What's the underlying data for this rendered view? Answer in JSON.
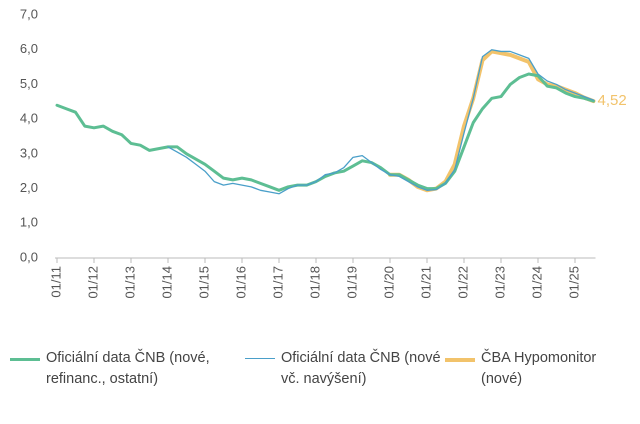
{
  "chart_data": {
    "type": "line",
    "categories": [
      "01/11",
      null,
      null,
      null,
      "01/12",
      null,
      null,
      null,
      "01/13",
      null,
      null,
      null,
      "01/14",
      null,
      null,
      null,
      "01/15",
      null,
      null,
      null,
      "01/16",
      null,
      null,
      null,
      "01/17",
      null,
      null,
      null,
      "01/18",
      null,
      null,
      null,
      "01/19",
      null,
      null,
      null,
      "01/20",
      null,
      null,
      null,
      "01/21",
      null,
      null,
      null,
      "01/22",
      null,
      null,
      null,
      "01/23",
      null,
      null,
      null,
      "01/24",
      null,
      null,
      null,
      "01/25",
      null,
      null
    ],
    "series": [
      {
        "name": "Oficiální data ČNB (nové, refinanc., ostatní)",
        "color": "#5dbe93",
        "values": [
          4.4,
          4.3,
          4.2,
          3.8,
          3.75,
          3.8,
          3.65,
          3.55,
          3.3,
          3.25,
          3.1,
          3.15,
          3.2,
          3.2,
          3.0,
          2.85,
          2.7,
          2.5,
          2.3,
          2.25,
          2.3,
          2.25,
          2.15,
          2.05,
          1.95,
          2.05,
          2.1,
          2.1,
          2.2,
          2.35,
          2.45,
          2.5,
          2.65,
          2.8,
          2.75,
          2.6,
          2.4,
          2.4,
          2.25,
          2.1,
          2.0,
          2.0,
          2.15,
          2.5,
          3.2,
          3.9,
          4.3,
          4.6,
          4.65,
          5.0,
          5.2,
          5.3,
          5.25,
          4.95,
          4.9,
          4.75,
          4.65,
          4.6,
          4.52
        ]
      },
      {
        "name": "Oficiální data ČNB (nové vč. navýšení)",
        "color": "#4a9fc9",
        "values": [
          null,
          null,
          null,
          null,
          null,
          null,
          null,
          null,
          null,
          null,
          null,
          null,
          3.2,
          3.05,
          2.9,
          2.7,
          2.5,
          2.2,
          2.1,
          2.15,
          2.1,
          2.05,
          1.95,
          1.9,
          1.85,
          2.0,
          2.1,
          2.1,
          2.2,
          2.4,
          2.45,
          2.6,
          2.9,
          2.95,
          2.75,
          2.55,
          2.4,
          2.35,
          2.2,
          2.05,
          1.95,
          1.97,
          2.15,
          2.55,
          3.6,
          4.6,
          5.8,
          6.0,
          5.95,
          5.95,
          5.85,
          5.75,
          5.3,
          5.1,
          5.0,
          4.85,
          4.75,
          4.65,
          4.55
        ]
      },
      {
        "name": "ČBA Hypomonitor (nové)",
        "color": "#f2c36b",
        "values": [
          null,
          null,
          null,
          null,
          null,
          null,
          null,
          null,
          null,
          null,
          null,
          null,
          null,
          null,
          null,
          null,
          null,
          null,
          null,
          null,
          null,
          null,
          null,
          null,
          null,
          null,
          null,
          null,
          null,
          null,
          null,
          null,
          null,
          null,
          null,
          null,
          2.4,
          2.4,
          2.25,
          2.05,
          1.95,
          2.0,
          2.2,
          2.7,
          3.8,
          4.6,
          5.7,
          5.95,
          5.9,
          5.85,
          5.75,
          5.65,
          5.15,
          5.0,
          4.95,
          4.85,
          4.75,
          4.62,
          4.52
        ],
        "value_labels": [
          null,
          null,
          null,
          null,
          null,
          null,
          null,
          null,
          null,
          null,
          null,
          null,
          null,
          null,
          null,
          null,
          null,
          null,
          null,
          null,
          null,
          null,
          null,
          null,
          null,
          null,
          null,
          null,
          null,
          null,
          null,
          null,
          null,
          null,
          null,
          null,
          null,
          null,
          null,
          null,
          null,
          null,
          null,
          null,
          null,
          null,
          null,
          null,
          null,
          null,
          null,
          null,
          null,
          null,
          null,
          null,
          null,
          null,
          "4,52"
        ]
      }
    ],
    "ylim": [
      0,
      7
    ],
    "yticks": [
      {
        "value": 0,
        "label": "0,0"
      },
      {
        "value": 1,
        "label": "1,0"
      },
      {
        "value": 2,
        "label": "2,0"
      },
      {
        "value": 3,
        "label": "3,0"
      },
      {
        "value": 4,
        "label": "4,0"
      },
      {
        "value": 5,
        "label": "5,0"
      },
      {
        "value": 6,
        "label": "6,0"
      },
      {
        "value": 7,
        "label": "7,0"
      }
    ],
    "grid": false
  }
}
